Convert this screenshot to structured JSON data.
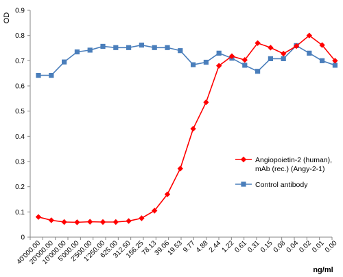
{
  "chart_data": {
    "type": "line",
    "title": "",
    "ylabel": "OD",
    "xlabel": "ng/ml",
    "ylim": [
      0,
      0.9
    ],
    "yticks": [
      "0",
      "0.1",
      "0.2",
      "0.3",
      "0.4",
      "0.5",
      "0.6",
      "0.7",
      "0.8",
      "0.9"
    ],
    "grid": false,
    "legend_position": "right",
    "categories": [
      "40'000.00",
      "20'000.00",
      "10'000.00",
      "5'000.00",
      "2'500.00",
      "1'250.00",
      "625.00",
      "312.50",
      "156.25",
      "78.13",
      "39.06",
      "19.53",
      "9.77",
      "4.88",
      "2.44",
      "1.22",
      "0.61",
      "0.31",
      "0.15",
      "0.08",
      "0.04",
      "0.02",
      "0.01",
      "0.00"
    ],
    "series": [
      {
        "name_lines": [
          "Angiopoietin-2 (human),",
          "mAb (rec.) (Angy-2-1)"
        ],
        "color": "#ff0000",
        "marker": "diamond",
        "values": [
          0.08,
          0.067,
          0.06,
          0.059,
          0.061,
          0.06,
          0.06,
          0.064,
          0.075,
          0.105,
          0.17,
          0.272,
          0.43,
          0.535,
          0.68,
          0.718,
          0.703,
          0.77,
          0.752,
          0.728,
          0.758,
          0.8,
          0.762,
          0.7
        ]
      },
      {
        "name_lines": [
          "Control antibody"
        ],
        "color": "#4a7ebb",
        "marker": "square",
        "values": [
          0.642,
          0.642,
          0.695,
          0.735,
          0.742,
          0.757,
          0.752,
          0.752,
          0.762,
          0.752,
          0.752,
          0.74,
          0.684,
          0.694,
          0.73,
          0.71,
          0.682,
          0.658,
          0.708,
          0.708,
          0.76,
          0.73,
          0.7,
          0.682
        ]
      }
    ]
  }
}
